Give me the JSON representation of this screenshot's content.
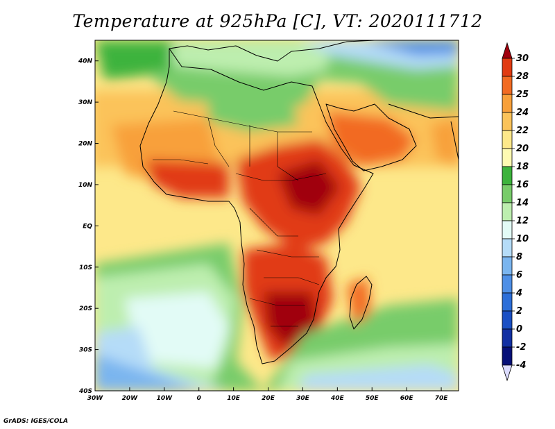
{
  "title": "Temperature at 925hPa [C], VT: 2020111712",
  "credit": "GrADS: IGES/COLA",
  "map": {
    "lon_range": [
      -30,
      75
    ],
    "lat_range": [
      -40,
      45
    ],
    "lon_ticks": [
      {
        "value": -30,
        "label": "30W"
      },
      {
        "value": -20,
        "label": "20W"
      },
      {
        "value": -10,
        "label": "10W"
      },
      {
        "value": 0,
        "label": "0"
      },
      {
        "value": 10,
        "label": "10E"
      },
      {
        "value": 20,
        "label": "20E"
      },
      {
        "value": 30,
        "label": "30E"
      },
      {
        "value": 40,
        "label": "40E"
      },
      {
        "value": 50,
        "label": "50E"
      },
      {
        "value": 60,
        "label": "60E"
      },
      {
        "value": 70,
        "label": "70E"
      }
    ],
    "lat_ticks": [
      {
        "value": 40,
        "label": "40N"
      },
      {
        "value": 30,
        "label": "30N"
      },
      {
        "value": 20,
        "label": "20N"
      },
      {
        "value": 10,
        "label": "10N"
      },
      {
        "value": 0,
        "label": "EQ"
      },
      {
        "value": -10,
        "label": "10S"
      },
      {
        "value": -20,
        "label": "20S"
      },
      {
        "value": -30,
        "label": "30S"
      },
      {
        "value": -40,
        "label": "40S"
      }
    ]
  },
  "colorbar": {
    "levels": [
      "30",
      "28",
      "25",
      "24",
      "22",
      "20",
      "18",
      "16",
      "14",
      "12",
      "10",
      "8",
      "6",
      "4",
      "2",
      "0",
      "-2",
      "-4"
    ],
    "colors": [
      "#a0000e",
      "#e13b12",
      "#f26b22",
      "#f8a03a",
      "#fbc35a",
      "#fde88a",
      "#fefab2",
      "#3cb33c",
      "#78cc6a",
      "#bdeeaf",
      "#e2fbf6",
      "#b5dcf8",
      "#7ab5ef",
      "#4e8fe6",
      "#2c6ed8",
      "#1b50c4",
      "#1230a3",
      "#061078",
      "#dcdcff"
    ]
  }
}
